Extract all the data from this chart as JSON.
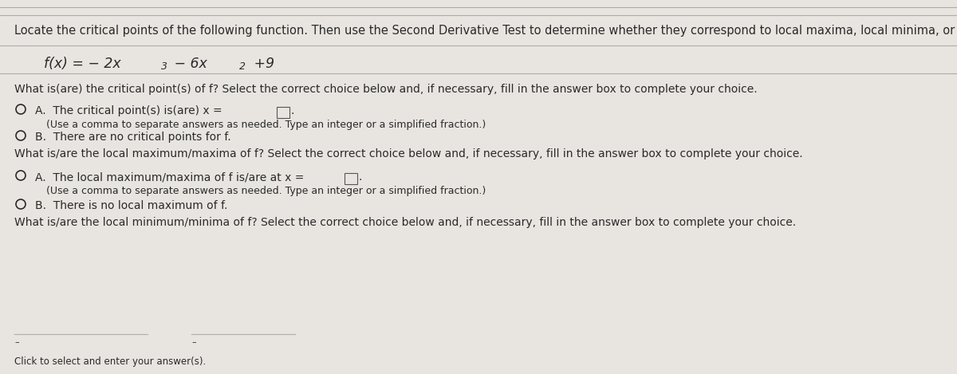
{
  "bg_color": "#e8e5e0",
  "text_color": "#2a2a2a",
  "line_color": "#b0aca6",
  "title": "Locate the critical points of the following function. Then use the Second Derivative Test to determine whether they correspond to local maxima, local minima, or neither.",
  "q1_text": "What is(are) the critical point(s) of f? Select the correct choice below and, if necessary, fill in the answer box to complete your choice.",
  "q1A_text": "The critical point(s) is(are) x =",
  "q1A_sub": "(Use a comma to separate answers as needed. Type an integer or a simplified fraction.)",
  "q1B_text": "There are no critical points for f.",
  "q2_text": "What is/are the local maximum/maxima of f? Select the correct choice below and, if necessary, fill in the answer box to complete your choice.",
  "q2A_text": "The local maximum/maxima of f is/are at x =",
  "q2A_sub": "(Use a comma to separate answers as needed. Type an integer or a simplified fraction.)",
  "q2B_text": "There is no local maximum of f.",
  "q3_text": "What is/are the local minimum/minima of f? Select the correct choice below and, if necessary, fill in the answer box to complete your choice.",
  "fs_title": 10.5,
  "fs_func": 12.5,
  "fs_body": 10.0,
  "fs_opt": 10.0,
  "fs_sub": 9.0,
  "fs_super": 7.5
}
